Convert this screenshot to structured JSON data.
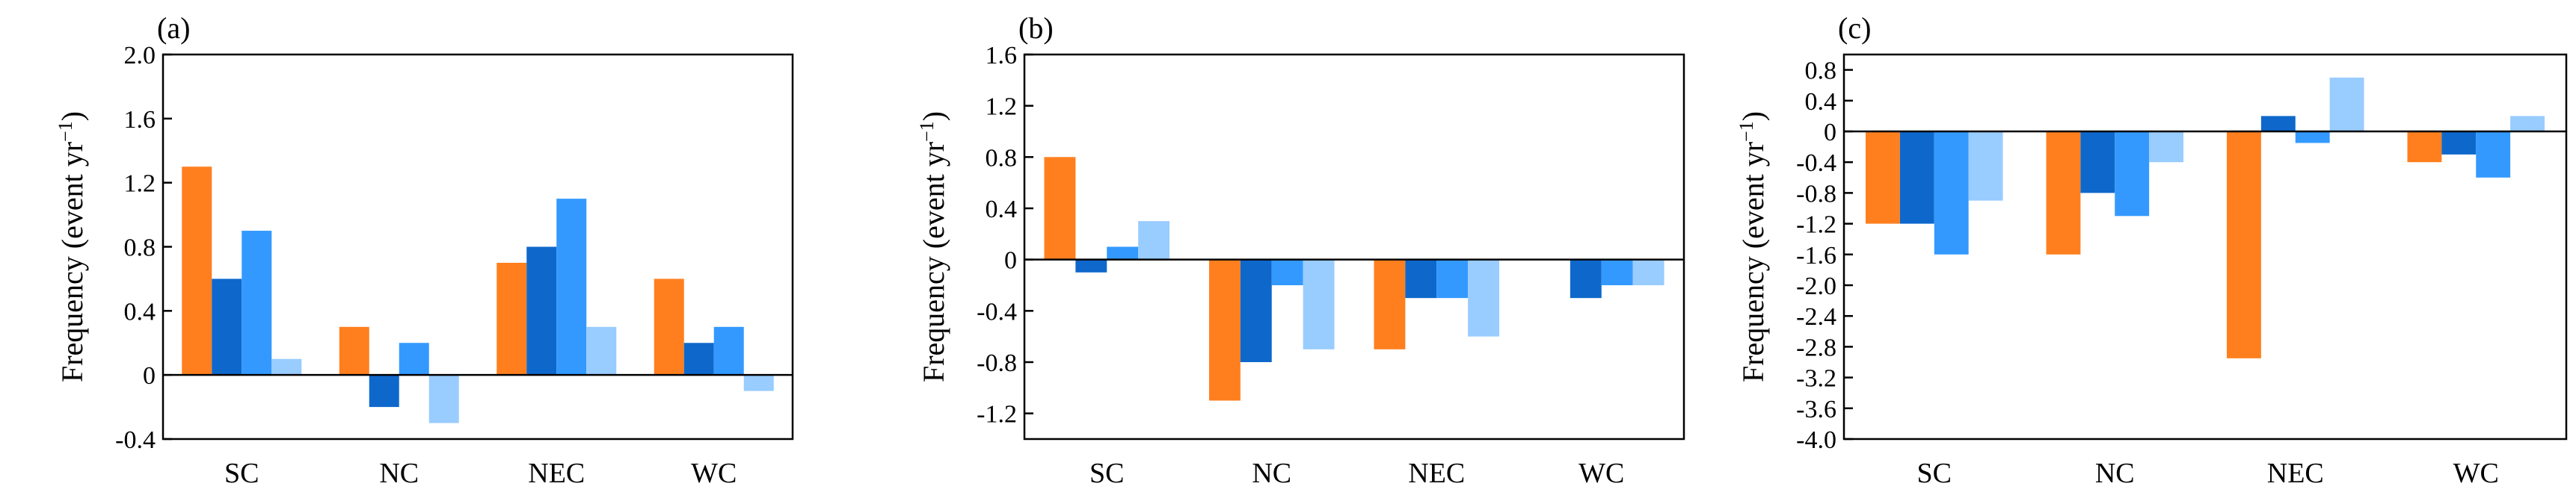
{
  "colors": {
    "series1": "#FF7F1E",
    "series2": "#0E68CC",
    "series3": "#3399FF",
    "series4": "#99CCFF",
    "axis": "#000000"
  },
  "chart_data": [
    {
      "type": "bar",
      "panel_label": "(a)",
      "ylabel": "Frequency (event yr",
      "ylabel_sup": "−1",
      "ylabel_close": ")",
      "categories": [
        "SC",
        "NC",
        "NEC",
        "WC"
      ],
      "ylim": [
        -0.4,
        2.0
      ],
      "yticks": [
        -0.4,
        0,
        0.4,
        0.8,
        1.2,
        1.6,
        2.0
      ],
      "ytick_labels": [
        "-0.4",
        "0",
        "0.4",
        "0.8",
        "1.2",
        "1.6",
        "2.0"
      ],
      "grid": false,
      "series": [
        {
          "values": [
            1.3,
            0.3,
            0.7,
            0.6
          ]
        },
        {
          "values": [
            0.6,
            -0.2,
            0.8,
            0.2
          ]
        },
        {
          "values": [
            0.9,
            0.2,
            1.1,
            0.3
          ]
        },
        {
          "values": [
            0.1,
            -0.3,
            0.3,
            -0.1
          ]
        }
      ]
    },
    {
      "type": "bar",
      "panel_label": "(b)",
      "ylabel": "Frequency (event yr",
      "ylabel_sup": "−1",
      "ylabel_close": ")",
      "categories": [
        "SC",
        "NC",
        "NEC",
        "WC"
      ],
      "ylim": [
        -1.4,
        1.6
      ],
      "yticks": [
        -1.2,
        -0.8,
        -0.4,
        0,
        0.4,
        0.8,
        1.2,
        1.6
      ],
      "ytick_labels": [
        "-1.2",
        "-0.8",
        "-0.4",
        "0",
        "0.4",
        "0.8",
        "1.2",
        "1.6"
      ],
      "grid": false,
      "series": [
        {
          "values": [
            0.8,
            -1.1,
            -0.7,
            0.0
          ]
        },
        {
          "values": [
            -0.1,
            -0.8,
            -0.3,
            -0.3
          ]
        },
        {
          "values": [
            0.1,
            -0.2,
            -0.3,
            -0.2
          ]
        },
        {
          "values": [
            0.3,
            -0.7,
            -0.6,
            -0.2
          ]
        }
      ]
    },
    {
      "type": "bar",
      "panel_label": "(c)",
      "ylabel": "Frequency (event yr",
      "ylabel_sup": "−1",
      "ylabel_close": ")",
      "categories": [
        "SC",
        "NC",
        "NEC",
        "WC"
      ],
      "ylim": [
        -4.0,
        1.0
      ],
      "yticks": [
        -4.0,
        -3.6,
        -3.2,
        -2.8,
        -2.4,
        -2.0,
        -1.6,
        -1.2,
        -0.8,
        -0.4,
        0,
        0.4,
        0.8
      ],
      "ytick_labels": [
        "-4.0",
        "-3.6",
        "-3.2",
        "-2.8",
        "-2.4",
        "-2.0",
        "-1.6",
        "-1.2",
        "-0.8",
        "-0.4",
        "0",
        "0.4",
        "0.8"
      ],
      "grid": false,
      "series": [
        {
          "values": [
            -1.2,
            -1.6,
            -2.95,
            -0.4
          ]
        },
        {
          "values": [
            -1.2,
            -0.8,
            0.2,
            -0.3
          ]
        },
        {
          "values": [
            -1.6,
            -1.1,
            -0.15,
            -0.6
          ]
        },
        {
          "values": [
            -0.9,
            -0.4,
            0.7,
            0.2
          ]
        }
      ]
    }
  ]
}
